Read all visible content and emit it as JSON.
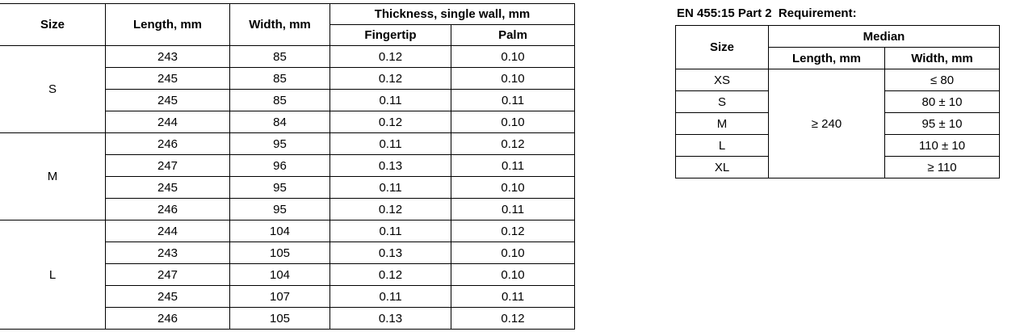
{
  "main_table": {
    "headers": {
      "size": "Size",
      "length": "Length, mm",
      "width": "Width, mm",
      "thickness": "Thickness, single wall, mm",
      "fingertip": "Fingertip",
      "palm": "Palm"
    },
    "groups": [
      {
        "size": "S",
        "rows": [
          [
            "243",
            "85",
            "0.12",
            "0.10"
          ],
          [
            "245",
            "85",
            "0.12",
            "0.10"
          ],
          [
            "245",
            "85",
            "0.11",
            "0.11"
          ],
          [
            "244",
            "84",
            "0.12",
            "0.10"
          ]
        ]
      },
      {
        "size": "M",
        "rows": [
          [
            "246",
            "95",
            "0.11",
            "0.12"
          ],
          [
            "247",
            "96",
            "0.13",
            "0.11"
          ],
          [
            "245",
            "95",
            "0.11",
            "0.10"
          ],
          [
            "246",
            "95",
            "0.12",
            "0.11"
          ]
        ]
      },
      {
        "size": "L",
        "rows": [
          [
            "244",
            "104",
            "0.11",
            "0.12"
          ],
          [
            "243",
            "105",
            "0.13",
            "0.10"
          ],
          [
            "247",
            "104",
            "0.12",
            "0.10"
          ],
          [
            "245",
            "107",
            "0.11",
            "0.11"
          ],
          [
            "246",
            "105",
            "0.13",
            "0.12"
          ]
        ]
      }
    ]
  },
  "requirement": {
    "caption": "EN 455:15 Part 2  Requirement:",
    "headers": {
      "size": "Size",
      "median": "Median",
      "length": "Length, mm",
      "width": "Width, mm"
    },
    "length_value": "≥ 240",
    "rows": [
      {
        "size": "XS",
        "width": "≤ 80"
      },
      {
        "size": "S",
        "width": "80 ± 10"
      },
      {
        "size": "M",
        "width": "95 ± 10"
      },
      {
        "size": "L",
        "width": "110 ± 10"
      },
      {
        "size": "XL",
        "width": "≥ 110"
      }
    ]
  }
}
